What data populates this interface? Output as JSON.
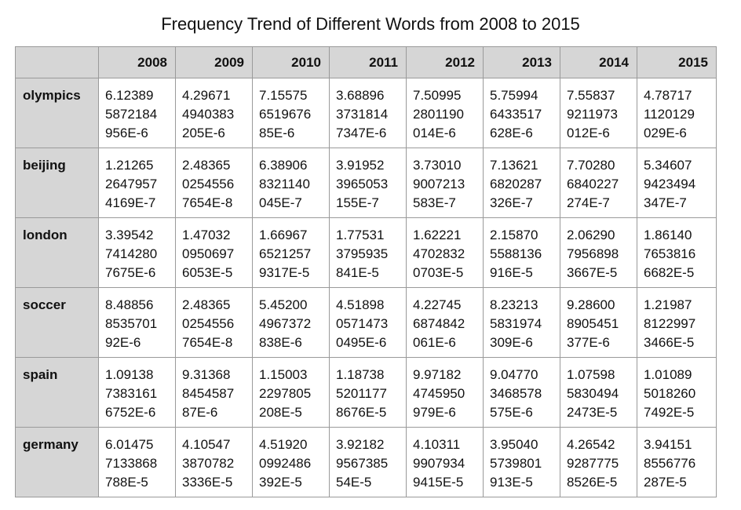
{
  "chart_data": {
    "type": "table",
    "title": "Frequency Trend of Different Words from 2008 to 2015",
    "columns": [
      "2008",
      "2009",
      "2010",
      "2011",
      "2012",
      "2013",
      "2014",
      "2015"
    ],
    "rows": [
      {
        "label": "olympics",
        "values": [
          "6.12389\n5872184\n956E-6",
          "4.29671\n4940383\n205E-6",
          "7.15575\n6519676\n85E-6",
          "3.68896\n3731814\n7347E-6",
          "7.50995\n2801190\n014E-6",
          "5.75994\n6433517\n628E-6",
          "7.55837\n9211973\n012E-6",
          "4.78717\n1120129\n029E-6"
        ]
      },
      {
        "label": "beijing",
        "values": [
          "1.21265\n2647957\n4169E-7",
          "2.48365\n0254556\n7654E-8",
          "6.38906\n8321140\n045E-7",
          "3.91952\n3965053\n155E-7",
          "3.73010\n9007213\n583E-7",
          "7.13621\n6820287\n326E-7",
          "7.70280\n6840227\n274E-7",
          "5.34607\n9423494\n347E-7"
        ]
      },
      {
        "label": "london",
        "values": [
          "3.39542\n7414280\n7675E-6",
          "1.47032\n0950697\n6053E-5",
          "1.66967\n6521257\n9317E-5",
          "1.77531\n3795935\n841E-5",
          "1.62221\n4702832\n0703E-5",
          "2.15870\n5588136\n916E-5",
          "2.06290\n7956898\n3667E-5",
          "1.86140\n7653816\n6682E-5"
        ]
      },
      {
        "label": "soccer",
        "values": [
          "8.48856\n8535701\n92E-6",
          "2.48365\n0254556\n7654E-8",
          "5.45200\n4967372\n838E-6",
          "4.51898\n0571473\n0495E-6",
          "4.22745\n6874842\n061E-6",
          "8.23213\n5831974\n309E-6",
          "9.28600\n8905451\n377E-6",
          "1.21987\n8122997\n3466E-5"
        ]
      },
      {
        "label": "spain",
        "values": [
          "1.09138\n7383161\n6752E-6",
          "9.31368\n8454587\n87E-6",
          "1.15003\n2297805\n208E-5",
          "1.18738\n5201177\n8676E-5",
          "9.97182\n4745950\n979E-6",
          "9.04770\n3468578\n575E-6",
          "1.07598\n5830494\n2473E-5",
          "1.01089\n5018260\n7492E-5"
        ]
      },
      {
        "label": "germany",
        "values": [
          "6.01475\n7133868\n788E-5",
          "4.10547\n3870782\n3336E-5",
          "4.51920\n0992486\n392E-5",
          "3.92182\n9567385\n54E-5",
          "4.10311\n9907934\n9415E-5",
          "3.95040\n5739801\n913E-5",
          "4.26542\n9287775\n8526E-5",
          "3.94151\n8556776\n287E-5"
        ]
      }
    ]
  }
}
